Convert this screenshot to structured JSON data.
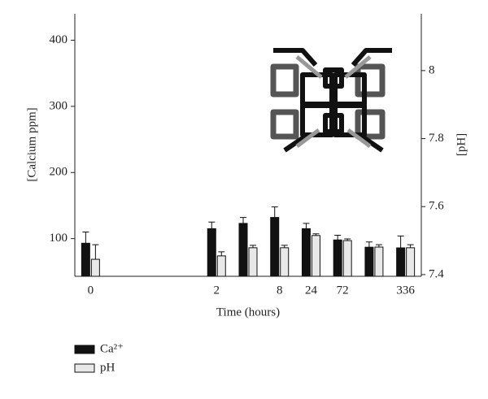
{
  "chart_data": {
    "type": "bar",
    "x_label": "Time (hours)",
    "y_label": "[Calcium ppm]",
    "y2_label": "[pH]",
    "categories": [
      "0",
      null,
      null,
      null,
      "2",
      null,
      "8",
      "24",
      "72",
      null,
      "336"
    ],
    "series": [
      {
        "name": "Ca²⁺",
        "color": "#111111",
        "axis": "y",
        "values": [
          93,
          null,
          null,
          null,
          115,
          123,
          132,
          115,
          98,
          87,
          86
        ],
        "errors": [
          17,
          null,
          null,
          null,
          10,
          9,
          16,
          8,
          7,
          8,
          18
        ]
      },
      {
        "name": "pH",
        "color": "#e8e8e8",
        "axis": "y2",
        "values": [
          7.445,
          null,
          null,
          null,
          7.455,
          7.479,
          7.479,
          7.515,
          7.5,
          7.481,
          7.479
        ],
        "errors": [
          0.043,
          null,
          null,
          null,
          0.012,
          0.007,
          0.007,
          0.005,
          0.005,
          0.007,
          0.009
        ]
      }
    ],
    "ylim": [
      43,
      440
    ],
    "yticks": [
      100,
      200,
      300,
      400
    ],
    "y2lim": [
      7.395,
      8.167
    ],
    "y2ticks": [
      7.4,
      7.6,
      7.8,
      8
    ],
    "grid": false
  }
}
